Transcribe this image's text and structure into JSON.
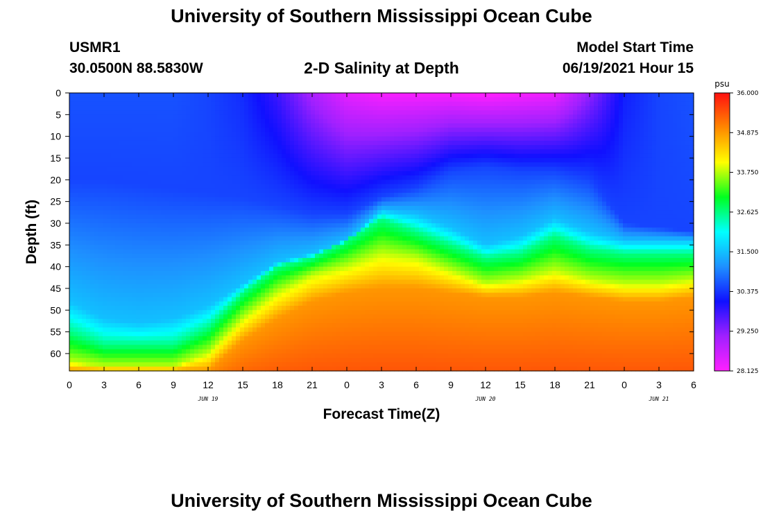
{
  "header": {
    "title": "University of Southern Mississippi Ocean Cube",
    "station_id": "USMR1",
    "coordinates": "30.0500N  88.5830W",
    "plot_title": "2-D Salinity at Depth",
    "model_start_label": "Model Start Time",
    "model_start_value": "06/19/2021 Hour 15"
  },
  "footer": {
    "title": "University of Southern Mississippi Ocean Cube"
  },
  "chart_data": {
    "type": "heatmap",
    "title": "2-D Salinity at Depth",
    "xlabel": "Forecast Time(Z)",
    "ylabel": "Depth (ft)",
    "x_tick_labels": [
      "0",
      "3",
      "6",
      "9",
      "12",
      "15",
      "18",
      "21",
      "0",
      "3",
      "6",
      "9",
      "12",
      "15",
      "18",
      "21",
      "0",
      "3",
      "6"
    ],
    "x_range_hours": [
      0,
      54
    ],
    "date_labels": [
      {
        "label": "JUN 19",
        "hour": 12
      },
      {
        "label": "JUN 20",
        "hour": 36
      },
      {
        "label": "JUN 21",
        "hour": 51
      }
    ],
    "y_ticks": [
      0,
      5,
      10,
      15,
      20,
      25,
      30,
      35,
      40,
      45,
      50,
      55,
      60
    ],
    "y_range": [
      0,
      64
    ],
    "y_inverted": true,
    "colorbar": {
      "unit": "psu",
      "min": 28.125,
      "max": 36.0,
      "tick_labels": [
        "36.000",
        "34.875",
        "33.750",
        "32.625",
        "31.500",
        "30.375",
        "29.250",
        "28.125"
      ],
      "colors": [
        "#ff20ff",
        "#a020ff",
        "#1010ff",
        "#1e90ff",
        "#00ffff",
        "#00ff20",
        "#ffff00",
        "#ff8800",
        "#ff1010"
      ]
    },
    "surface_salinity_psu": [
      30.6,
      30.6,
      30.6,
      30.6,
      30.5,
      30.3,
      29.8,
      29.0,
      28.4,
      28.2,
      28.2,
      28.2,
      28.1,
      28.2,
      28.3,
      29.2,
      30.2,
      30.5,
      30.6
    ],
    "isohaline_depths_ft": {
      "30.5_psu": [
        20,
        20,
        21,
        22,
        23,
        24,
        26,
        28,
        28,
        24,
        22,
        18,
        17,
        18,
        18,
        20,
        30,
        31,
        32
      ],
      "31.5_psu": [
        48,
        52,
        53,
        52,
        49,
        44,
        39,
        37,
        34,
        27,
        28,
        31,
        35,
        33,
        29,
        32,
        34,
        34,
        34
      ],
      "32.6_psu": [
        55,
        58,
        58,
        58,
        54,
        46,
        40,
        38,
        34,
        29,
        32,
        35,
        38,
        37,
        33,
        36,
        37,
        37,
        37
      ],
      "33.8_psu": [
        62,
        63,
        63,
        63,
        60,
        52,
        46,
        42,
        40,
        37,
        38,
        41,
        44,
        43,
        41,
        43,
        44,
        44,
        43
      ],
      "34.9_psu": [
        64,
        64,
        64,
        64,
        64,
        57,
        52,
        48,
        46,
        45,
        45,
        46,
        47,
        47,
        46,
        47,
        48,
        48,
        47
      ]
    },
    "bottom_salinity_psu": 35.6
  }
}
